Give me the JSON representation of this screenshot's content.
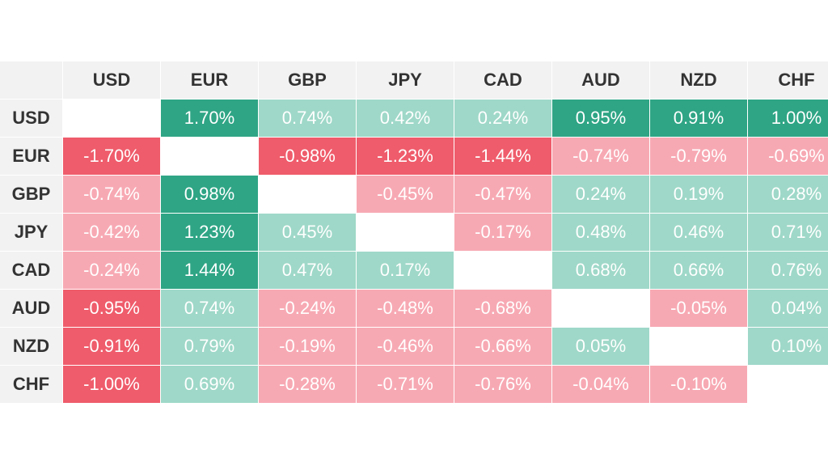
{
  "chart_data": {
    "type": "heatmap",
    "columns": [
      "USD",
      "EUR",
      "GBP",
      "JPY",
      "CAD",
      "AUD",
      "NZD",
      "CHF"
    ],
    "rows": [
      "USD",
      "EUR",
      "GBP",
      "JPY",
      "CAD",
      "AUD",
      "NZD",
      "CHF"
    ],
    "values": [
      [
        null,
        1.7,
        0.74,
        0.42,
        0.24,
        0.95,
        0.91,
        1.0
      ],
      [
        -1.7,
        null,
        -0.98,
        -1.23,
        -1.44,
        -0.74,
        -0.79,
        -0.69
      ],
      [
        -0.74,
        0.98,
        null,
        -0.45,
        -0.47,
        0.24,
        0.19,
        0.28
      ],
      [
        -0.42,
        1.23,
        0.45,
        null,
        -0.17,
        0.48,
        0.46,
        0.71
      ],
      [
        -0.24,
        1.44,
        0.47,
        0.17,
        null,
        0.68,
        0.66,
        0.76
      ],
      [
        -0.95,
        0.74,
        -0.24,
        -0.48,
        -0.68,
        null,
        -0.05,
        0.04
      ],
      [
        -0.91,
        0.79,
        -0.19,
        -0.46,
        -0.66,
        0.05,
        null,
        0.1
      ],
      [
        -1.0,
        0.69,
        -0.28,
        -0.71,
        -0.76,
        -0.04,
        -0.1,
        null
      ]
    ],
    "labels": [
      [
        "",
        "1.70%",
        "0.74%",
        "0.42%",
        "0.24%",
        "0.95%",
        "0.91%",
        "1.00%"
      ],
      [
        "-1.70%",
        "",
        "-0.98%",
        "-1.23%",
        "-1.44%",
        "-0.74%",
        "-0.79%",
        "-0.69%"
      ],
      [
        "-0.74%",
        "0.98%",
        "",
        "-0.45%",
        "-0.47%",
        "0.24%",
        "0.19%",
        "0.28%"
      ],
      [
        "-0.42%",
        "1.23%",
        "0.45%",
        "",
        "-0.17%",
        "0.48%",
        "0.46%",
        "0.71%"
      ],
      [
        "-0.24%",
        "1.44%",
        "0.47%",
        "0.17%",
        "",
        "0.68%",
        "0.66%",
        "0.76%"
      ],
      [
        "-0.95%",
        "0.74%",
        "-0.24%",
        "-0.48%",
        "-0.68%",
        "",
        "-0.05%",
        "0.04%"
      ],
      [
        "-0.91%",
        "0.79%",
        "-0.19%",
        "-0.46%",
        "-0.66%",
        "0.05%",
        "",
        "0.10%"
      ],
      [
        "-1.00%",
        "0.69%",
        "-0.28%",
        "-0.71%",
        "-0.76%",
        "-0.04%",
        "-0.10%",
        ""
      ]
    ],
    "color_scale": {
      "strong_positive": "#2fa585",
      "positive": "#9fd8c8",
      "negative": "#f7a9b3",
      "strong_negative": "#ef5c6b",
      "diagonal": "#ffffff",
      "header_background": "#f2f2f2",
      "header_text": "#333333",
      "cell_text": "#ffffff",
      "strong_threshold": 0.9
    },
    "grid": true,
    "legend": "none"
  }
}
